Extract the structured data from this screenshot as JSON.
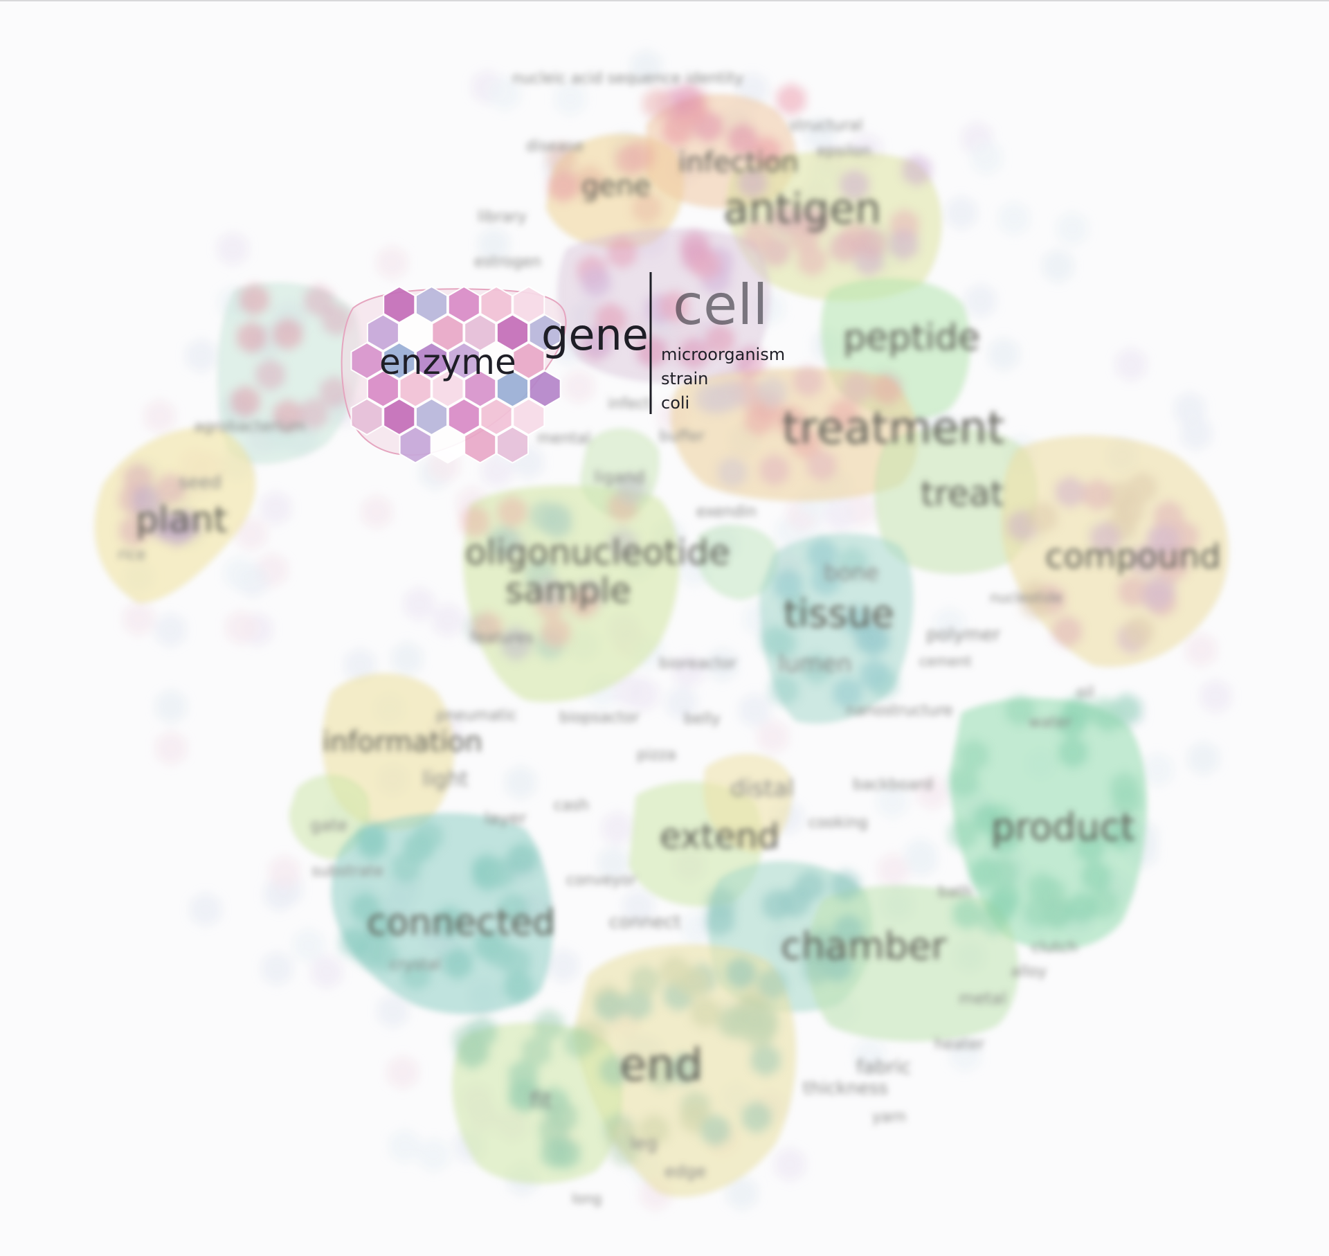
{
  "focus": {
    "selected_label": "enzyme",
    "hover_label": "gene",
    "tooltip_title": "cell",
    "tooltip_terms": [
      "microorganism",
      "strain",
      "coli"
    ]
  },
  "clusters": [
    {
      "id": "gene",
      "label": "gene",
      "color": "#f2d39a"
    },
    {
      "id": "infection",
      "label": "infection",
      "color": "#f0c7a0"
    },
    {
      "id": "antigen",
      "label": "antigen",
      "color": "#e2e5a0"
    },
    {
      "id": "peptide",
      "label": "peptide",
      "color": "#b9e7b0"
    },
    {
      "id": "treatment",
      "label": "treatment",
      "color": "#efd3a0"
    },
    {
      "id": "treat",
      "label": "treat",
      "color": "#c9e4b3"
    },
    {
      "id": "compound",
      "label": "compound",
      "color": "#efe0a8"
    },
    {
      "id": "plant",
      "label": "plant",
      "color": "#f1e3a6"
    },
    {
      "id": "oligonucleotide",
      "label": "oligonucleotide",
      "color": "#d8e8aa"
    },
    {
      "id": "sample",
      "label": "sample",
      "color": "#d8e8aa"
    },
    {
      "id": "tissue",
      "label": "tissue",
      "color": "#a9d9cf"
    },
    {
      "id": "product",
      "label": "product",
      "color": "#9fe0b7"
    },
    {
      "id": "connected",
      "label": "connected",
      "color": "#93d1c8"
    },
    {
      "id": "extend",
      "label": "extend",
      "color": "#cde8aa"
    },
    {
      "id": "chamber",
      "label": "chamber",
      "color": "#b7e3b4"
    },
    {
      "id": "end",
      "label": "end",
      "color": "#ece2a8"
    },
    {
      "id": "information",
      "label": "information",
      "color": "#eee0a4"
    }
  ],
  "labels": [
    "nucleic acid sequence identity",
    "structural",
    "epsilon",
    "disease",
    "library",
    "estrogen",
    "infect",
    "mental",
    "buffer",
    "ligand",
    "exendin",
    "agrobacterium",
    "seed",
    "rice",
    "bone",
    "lumen",
    "nucleotide",
    "polymer",
    "cement",
    "features",
    "bioreactor",
    "pneumatic",
    "biopsactor",
    "belly",
    "nanostructure",
    "oil",
    "water",
    "pizza",
    "light",
    "cash",
    "backboard",
    "gate",
    "layer",
    "cooking",
    "substrate",
    "conveyor",
    "connect",
    "bath",
    "clutch",
    "crystal",
    "alloy",
    "metal",
    "heater",
    "fabric",
    "thickness",
    "yarn",
    "fit",
    "leg",
    "edge",
    "long",
    "distal"
  ]
}
